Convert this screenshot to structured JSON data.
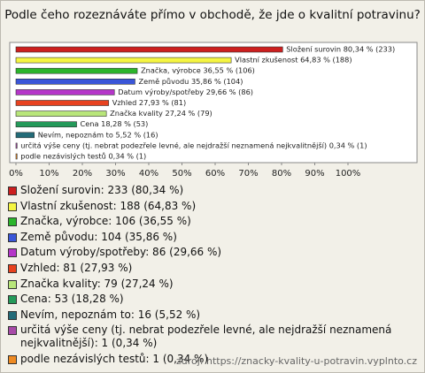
{
  "chart_data": {
    "type": "bar",
    "orientation": "horizontal",
    "title": "Podle čeho rozeznáváte přímo v obchodě, že jde o kvalitní potravinu?",
    "categories": [
      "Složení surovin",
      "Vlastní zkušenost",
      "Značka, výrobce",
      "Země původu",
      "Datum výroby/spotřeby",
      "Vzhled",
      "Značka kvality",
      "Cena",
      "Nevím, nepoznám to",
      "určitá výše ceny (tj. nebrat podezřele levné, ale nejdražší neznamená nejkvalitnější)",
      "podle nezávislých testů"
    ],
    "values": [
      80.34,
      64.83,
      36.55,
      35.86,
      29.66,
      27.93,
      27.24,
      18.28,
      5.52,
      0.34,
      0.34
    ],
    "value_labels": [
      "Složení surovin 80,34 % (233)",
      "Vlastní zkušenost 64,83 % (188)",
      "Značka, výrobce 36,55 % (106)",
      "Země původu 35,86 % (104)",
      "Datum výroby/spotřeby 29,66 % (86)",
      "Vzhled 27,93 % (81)",
      "Značka kvality 27,24 % (79)",
      "Cena 18,28 % (53)",
      "Nevím, nepoznám to 5,52 % (16)",
      "určitá výše ceny (tj. nebrat podezřele levné, ale nejdražší neznamená nejkvalitnější) 0,34 % (1)",
      "podle nezávislých testů 0,34 % (1)"
    ],
    "legend_labels": [
      "Složení surovin: 233 (80,34 %)",
      "Vlastní zkušenost: 188 (64,83 %)",
      "Značka, výrobce: 106 (36,55 %)",
      "Země původu: 104 (35,86 %)",
      "Datum výroby/spotřeby: 86 (29,66 %)",
      "Vzhled: 81 (27,93 %)",
      "Značka kvality: 79 (27,24 %)",
      "Cena: 53 (18,28 %)",
      "Nevím, nepoznám to: 16 (5,52 %)",
      "určitá výše ceny (tj. nebrat podezřele levné, ale nejdražší neznamená nejkvalitnější): 1 (0,34 %)",
      "podle nezávislých testů: 1 (0,34 %)"
    ],
    "colors": [
      "#cc1f1f",
      "#f5f542",
      "#2bb52b",
      "#3a56d8",
      "#b536c9",
      "#e8421f",
      "#b8e67a",
      "#249a5a",
      "#236b78",
      "#a84aa8",
      "#ee8a22"
    ],
    "xlim": [
      0,
      100
    ],
    "xticks": [
      {
        "value": 0,
        "label": "0%"
      },
      {
        "value": 10,
        "label": "10%"
      },
      {
        "value": 20,
        "label": "20%"
      },
      {
        "value": 30,
        "label": "30%"
      },
      {
        "value": 40,
        "label": "40%"
      },
      {
        "value": 50,
        "label": "50%"
      },
      {
        "value": 60,
        "label": "60%"
      },
      {
        "value": 70,
        "label": "70%"
      },
      {
        "value": 80,
        "label": "80%"
      },
      {
        "value": 90,
        "label": "90%"
      },
      {
        "value": 100,
        "label": "100%"
      }
    ],
    "source": "zdroj: https://znacky-kvality-u-potravin.vyplnto.cz"
  }
}
